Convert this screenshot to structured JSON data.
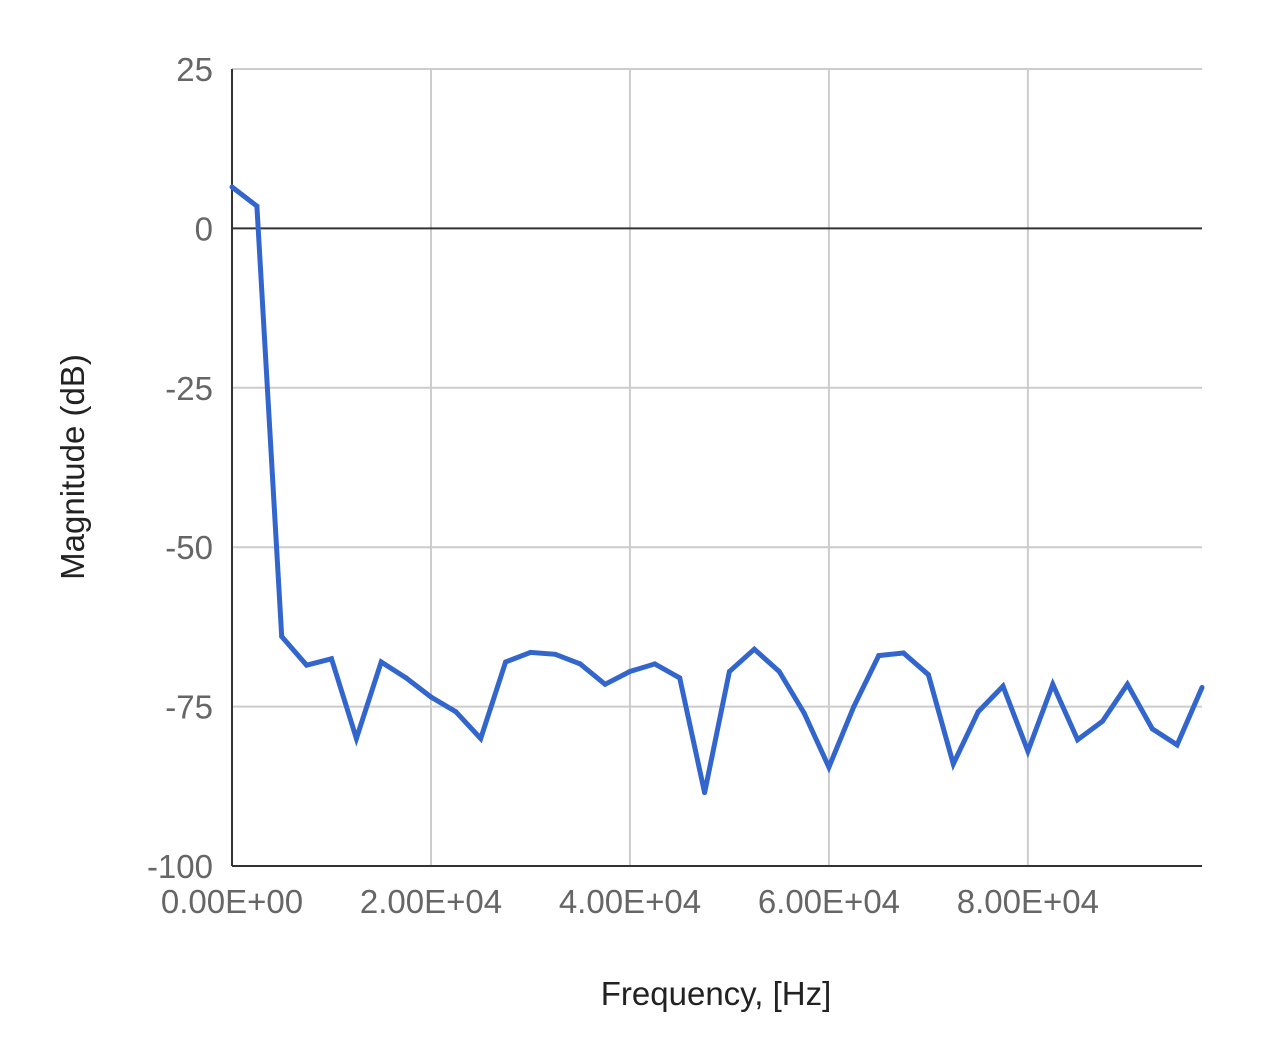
{
  "chart_data": {
    "type": "line",
    "title": "",
    "xlabel": "Frequency, [Hz]",
    "ylabel": "Magnitude (dB)",
    "xlim": [
      0,
      97500
    ],
    "ylim": [
      -100,
      25
    ],
    "x_ticks": [
      0,
      20000,
      40000,
      60000,
      80000
    ],
    "x_tick_labels": [
      "0.00E+00",
      "2.00E+04",
      "4.00E+04",
      "6.00E+04",
      "8.00E+04"
    ],
    "y_ticks": [
      25,
      0,
      -25,
      -50,
      -75,
      -100
    ],
    "y_tick_labels": [
      "25",
      "0",
      "-25",
      "-50",
      "-75",
      "-100"
    ],
    "grid": true,
    "legend": "none",
    "colors": {
      "line": "#3366cc",
      "grid": "#cccccc",
      "baseline": "#333333"
    },
    "series": [
      {
        "x": [
          0,
          2500,
          5000,
          7500,
          10000,
          12500,
          15000,
          17500,
          20000,
          22500,
          25000,
          27500,
          30000,
          32500,
          35000,
          37500,
          40000,
          42500,
          45000,
          47500,
          50000,
          52500,
          55000,
          57500,
          60000,
          62500,
          65000,
          67500,
          70000,
          72500,
          75000,
          77500,
          80000,
          82500,
          85000,
          87500,
          90000,
          92500,
          95000,
          97500
        ],
        "values": [
          6.5,
          3.5,
          -64,
          -68.5,
          -67.5,
          -80,
          -68,
          -70.5,
          -73.5,
          -75.8,
          -80,
          -68,
          -66.5,
          -66.8,
          -68.3,
          -71.5,
          -69.5,
          -68.3,
          -70.5,
          -88.5,
          -69.5,
          -66,
          -69.5,
          -76,
          -84.5,
          -75,
          -67,
          -66.6,
          -70,
          -84,
          -75.8,
          -71.8,
          -82,
          -71.5,
          -80.2,
          -77.3,
          -71.5,
          -78.5,
          -81,
          -72
        ]
      }
    ]
  }
}
